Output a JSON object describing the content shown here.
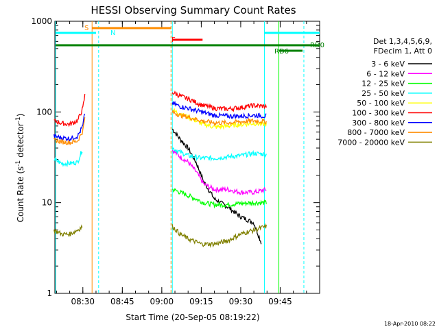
{
  "chart_data": {
    "type": "line",
    "title": "HESSI Observing Summary Count Rates",
    "xlabel": "Start Time (20-Sep-05 08:19:22)",
    "ylabel_main": "Count Rate (s",
    "ylabel_sup1": "-1",
    "ylabel_mid": " detector",
    "ylabel_sup2": "-1",
    "ylabel_end": ")",
    "yscale": "log",
    "xlim": [
      "08:19:22",
      "10:00:00"
    ],
    "ylim": [
      1,
      1000
    ],
    "x_ticks": [
      "08:30",
      "08:45",
      "09:00",
      "09:15",
      "09:30",
      "09:45"
    ],
    "y_ticks": [
      "1",
      "10",
      "100",
      "1000"
    ],
    "legend_header": [
      "Det 1,3,4,5,6,9,",
      "FDecim 1, Att 0"
    ],
    "legend_placement": "right",
    "footer": "18-Apr-2010 08:22",
    "series": [
      {
        "name": "3 - 6 keV",
        "color": "#000000",
        "segments": [
          {
            "x": [
              "08:19",
              "08:25",
              "08:30",
              "08:32"
            ],
            "y": [
              null,
              null,
              null,
              null
            ]
          },
          {
            "x": [
              "09:04",
              "09:07",
              "09:10",
              "09:13",
              "09:16",
              "09:20",
              "09:25",
              "09:30",
              "09:35",
              "09:38"
            ],
            "y": [
              65,
              50,
              40,
              28,
              17,
              11,
              9,
              7,
              6,
              3.5
            ]
          }
        ]
      },
      {
        "name": "6 - 12 keV",
        "color": "#ff00ff",
        "segments": [
          {
            "x": [
              "09:04",
              "09:07",
              "09:10",
              "09:13",
              "09:16",
              "09:20",
              "09:25",
              "09:30",
              "09:35",
              "09:40"
            ],
            "y": [
              38,
              32,
              28,
              22,
              16,
              14,
              14,
              13,
              13,
              14
            ]
          }
        ]
      },
      {
        "name": "12 - 25 keV",
        "color": "#00ff00",
        "segments": [
          {
            "x": [
              "09:04",
              "09:07",
              "09:10",
              "09:13",
              "09:16",
              "09:20",
              "09:25",
              "09:30",
              "09:35",
              "09:40"
            ],
            "y": [
              14,
              13,
              12,
              11,
              10,
              9.5,
              9.5,
              9.8,
              10,
              10
            ]
          }
        ]
      },
      {
        "name": "25 - 50 keV",
        "color": "#00ffff",
        "segments": [
          {
            "x": [
              "08:19",
              "08:22",
              "08:25",
              "08:28",
              "08:30"
            ],
            "y": [
              30,
              27,
              27,
              28,
              40
            ]
          },
          {
            "x": [
              "09:04",
              "09:07",
              "09:10",
              "09:15",
              "09:20",
              "09:25",
              "09:30",
              "09:35",
              "09:40"
            ],
            "y": [
              40,
              36,
              33,
              31,
              31,
              32,
              33,
              35,
              34
            ]
          }
        ]
      },
      {
        "name": "50 - 100 keV",
        "color": "#ffff00",
        "segments": [
          {
            "x": [
              "09:04",
              "09:07",
              "09:10",
              "09:15",
              "09:20",
              "09:25",
              "09:30",
              "09:35",
              "09:40"
            ],
            "y": [
              105,
              95,
              88,
              75,
              68,
              70,
              73,
              75,
              73
            ]
          }
        ]
      },
      {
        "name": "100 - 300 keV",
        "color": "#ff0000",
        "segments": [
          {
            "x": [
              "08:19",
              "08:22",
              "08:25",
              "08:28",
              "08:30",
              "08:31"
            ],
            "y": [
              80,
              75,
              73,
              80,
              110,
              170
            ]
          },
          {
            "x": [
              "09:04",
              "09:07",
              "09:10",
              "09:15",
              "09:20",
              "09:25",
              "09:30",
              "09:35",
              "09:40"
            ],
            "y": [
              165,
              150,
              140,
              120,
              110,
              108,
              112,
              118,
              115
            ]
          }
        ]
      },
      {
        "name": "300 - 800 keV",
        "color": "#0000ff",
        "segments": [
          {
            "x": [
              "08:19",
              "08:22",
              "08:25",
              "08:28",
              "08:30",
              "08:31"
            ],
            "y": [
              54,
              52,
              51,
              54,
              70,
              110
            ]
          },
          {
            "x": [
              "09:04",
              "09:07",
              "09:10",
              "09:15",
              "09:20",
              "09:25",
              "09:30",
              "09:35",
              "09:40"
            ],
            "y": [
              125,
              115,
              110,
              100,
              92,
              90,
              90,
              92,
              90
            ]
          }
        ]
      },
      {
        "name": "800 - 7000 keV",
        "color": "#ff8c00",
        "segments": [
          {
            "x": [
              "08:19",
              "08:22",
              "08:25",
              "08:28",
              "08:30",
              "08:31"
            ],
            "y": [
              49,
              47,
              46,
              48,
              62,
              95
            ]
          },
          {
            "x": [
              "09:04",
              "09:07",
              "09:10",
              "09:15",
              "09:20",
              "09:25",
              "09:30",
              "09:35",
              "09:40"
            ],
            "y": [
              100,
              92,
              88,
              80,
              76,
              76,
              78,
              80,
              78
            ]
          }
        ]
      },
      {
        "name": "7000 - 20000 keV",
        "color": "#808000",
        "segments": [
          {
            "x": [
              "08:19",
              "08:22",
              "08:25",
              "08:28",
              "08:30"
            ],
            "y": [
              5,
              4.5,
              4.5,
              5,
              5.5
            ]
          },
          {
            "x": [
              "09:04",
              "09:07",
              "09:10",
              "09:15",
              "09:20",
              "09:25",
              "09:30",
              "09:35",
              "09:40"
            ],
            "y": [
              5.5,
              4.5,
              4,
              3.5,
              3.5,
              3.8,
              4.5,
              5,
              5.5
            ]
          }
        ]
      }
    ],
    "flags": [
      {
        "label": "S",
        "color": "#ff8c00"
      },
      {
        "label": "N",
        "color": "#00ffff"
      },
      {
        "label": "F",
        "color": "#ff0000"
      },
      {
        "label": "RD0",
        "color": "#008000"
      },
      {
        "label": "RD6",
        "color": "#008000"
      }
    ]
  }
}
